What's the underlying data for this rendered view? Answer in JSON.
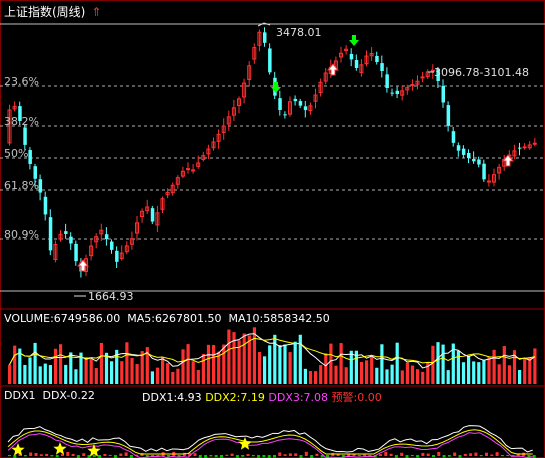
{
  "title": "上证指数(周线)",
  "title_arrow": "⇑",
  "fib_levels": [
    {
      "label": "23.6%"
    },
    {
      "label": "38.2%"
    },
    {
      "label": "50%"
    },
    {
      "label": "61.8%"
    },
    {
      "label": "80.9%"
    }
  ],
  "annotations": {
    "high": "3478.01",
    "low": "1664.93",
    "range": "3096.78-3101.48"
  },
  "volume_line": {
    "volume_label": "VOLUME:",
    "volume_value": "6749586.00",
    "ma5_label": "MA5:",
    "ma5_value": "6267801.50",
    "ma10_label": "MA10:",
    "ma10_value": "5858342.50"
  },
  "ddx_line": {
    "ddx1": "DDX1",
    "ddx": "DDX-0.22",
    "ddx1_val": "DDX1:4.93",
    "ddx2_val": "DDX2:7.19",
    "ddx3_val": "DDX3:7.08",
    "alarm": "预警:0.00"
  },
  "colors": {
    "up": "#ff3030",
    "down": "#54ffff",
    "grid": "#b0b0b0",
    "separator": "#a00000"
  }
}
